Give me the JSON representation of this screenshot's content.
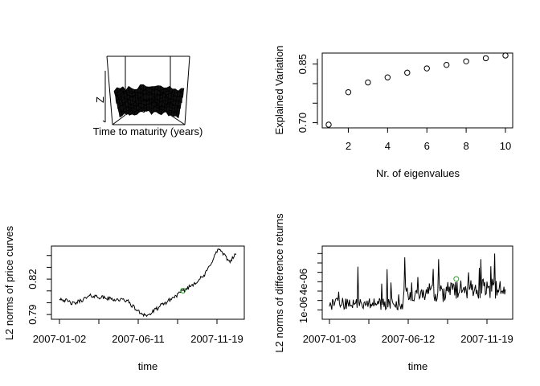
{
  "chart_data": [
    {
      "type": "surface",
      "panel": "top-left",
      "xlabel": "Time to maturity (years)",
      "zlabel": "Z"
    },
    {
      "type": "scatter",
      "panel": "top-right",
      "xlabel": "Nr. of eigenvalues",
      "ylabel": "Explained Variation",
      "x": [
        1,
        2,
        3,
        4,
        5,
        6,
        7,
        8,
        9,
        10
      ],
      "y": [
        0.695,
        0.778,
        0.803,
        0.816,
        0.828,
        0.839,
        0.848,
        0.857,
        0.865,
        0.872
      ],
      "xlim": [
        1,
        10
      ],
      "ylim": [
        0.695,
        0.872
      ],
      "xticks": [
        "2",
        "4",
        "6",
        "8",
        "10"
      ],
      "yticks": [
        "0.70",
        "0.85"
      ],
      "grid": false
    },
    {
      "type": "line",
      "panel": "bottom-left",
      "xlabel": "time",
      "ylabel": "L2 norms of price curves",
      "xticks": [
        "2007-01-02",
        "2007-06-11",
        "2007-11-19"
      ],
      "yticks": [
        "0.79",
        "0.82"
      ],
      "ylim": [
        0.786,
        0.848
      ],
      "highlight_index": 0.7,
      "highlight_color": "#2ca02c",
      "grid": false
    },
    {
      "type": "line",
      "panel": "bottom-right",
      "xlabel": "time",
      "ylabel": "L2 norms of difference returns",
      "xticks": [
        "2007-01-03",
        "2007-06-12",
        "2007-11-19"
      ],
      "yticks": [
        "1e-06",
        "4e-06"
      ],
      "ylim": [
        0.0,
        7.8e-06
      ],
      "highlight_index": 0.72,
      "highlight_color": "#2ca02c",
      "grid": false
    }
  ]
}
